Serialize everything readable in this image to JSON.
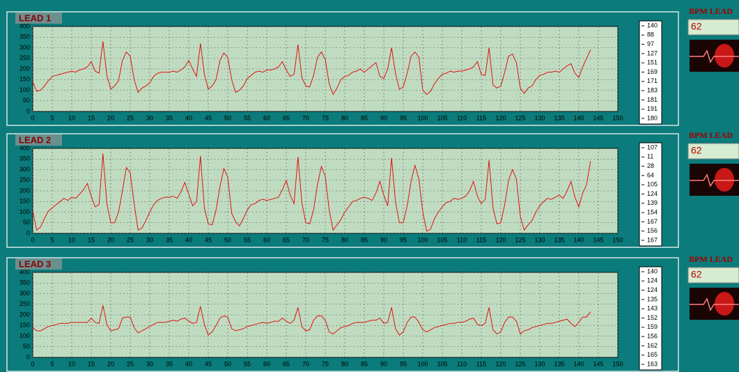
{
  "chart_data": [
    {
      "type": "line",
      "title": "LEAD 1",
      "color": "#e01010",
      "grid": true,
      "x": [
        0,
        1,
        2,
        3,
        4,
        5,
        6,
        7,
        8,
        9,
        10,
        11,
        12,
        13,
        14,
        15,
        16,
        17,
        18,
        19,
        20,
        21,
        22,
        23,
        24,
        25,
        26,
        27,
        28,
        29,
        30,
        31,
        32,
        33,
        34,
        35,
        36,
        37,
        38,
        39,
        40,
        41,
        42,
        43,
        44,
        45,
        46,
        47,
        48,
        49,
        50,
        51,
        52,
        53,
        54,
        55,
        56,
        57,
        58,
        59,
        60,
        61,
        62,
        63,
        64,
        65,
        66,
        67,
        68,
        69,
        70,
        71,
        72,
        73,
        74,
        75,
        76,
        77,
        78,
        79,
        80,
        81,
        82,
        83,
        84,
        85,
        86,
        87,
        88,
        89,
        90,
        91,
        92,
        93,
        94,
        95,
        96,
        97,
        98,
        99,
        100,
        101,
        102,
        103,
        104,
        105,
        106,
        107,
        108,
        109,
        110,
        111,
        112,
        113,
        114,
        115,
        116,
        117,
        118,
        119,
        120,
        121,
        122,
        123,
        124,
        125,
        126,
        127,
        128,
        129,
        130,
        131,
        132,
        133,
        134,
        135,
        136,
        137,
        138,
        139,
        140,
        141,
        142,
        143
      ],
      "values": [
        140,
        95,
        100,
        120,
        145,
        165,
        170,
        175,
        180,
        185,
        190,
        185,
        195,
        200,
        210,
        235,
        190,
        180,
        330,
        170,
        105,
        120,
        145,
        240,
        280,
        260,
        150,
        90,
        110,
        120,
        135,
        165,
        180,
        185,
        185,
        185,
        190,
        185,
        195,
        210,
        240,
        200,
        165,
        320,
        175,
        105,
        120,
        150,
        240,
        275,
        255,
        150,
        90,
        100,
        120,
        155,
        170,
        185,
        190,
        185,
        195,
        195,
        200,
        210,
        235,
        195,
        165,
        175,
        315,
        160,
        120,
        115,
        170,
        255,
        280,
        245,
        130,
        80,
        110,
        150,
        165,
        170,
        185,
        190,
        200,
        185,
        200,
        215,
        230,
        165,
        155,
        200,
        300,
        180,
        105,
        115,
        180,
        260,
        280,
        255,
        100,
        80,
        95,
        130,
        155,
        175,
        180,
        190,
        185,
        190,
        190,
        195,
        200,
        210,
        235,
        175,
        170,
        300,
        125,
        110,
        120,
        185,
        260,
        270,
        230,
        110,
        85,
        110,
        120,
        150,
        170,
        175,
        185,
        185,
        190,
        185,
        200,
        215,
        225,
        180,
        160,
        210,
        250,
        290
      ],
      "xlim": [
        0,
        150
      ],
      "xticks": [
        0,
        5,
        10,
        15,
        20,
        25,
        30,
        35,
        40,
        45,
        50,
        55,
        60,
        65,
        70,
        75,
        80,
        85,
        90,
        95,
        100,
        105,
        110,
        115,
        120,
        125,
        130,
        135,
        140,
        145,
        150
      ],
      "ylim": [
        0,
        400
      ],
      "yticks": [
        0,
        50,
        100,
        150,
        200,
        250,
        300,
        350,
        400
      ],
      "side_values": [
        140,
        88,
        97,
        127,
        151,
        169,
        171,
        183,
        181,
        191,
        180
      ]
    },
    {
      "type": "line",
      "title": "LEAD 2",
      "color": "#e01010",
      "grid": true,
      "x": [
        0,
        1,
        2,
        3,
        4,
        5,
        6,
        7,
        8,
        9,
        10,
        11,
        12,
        13,
        14,
        15,
        16,
        17,
        18,
        19,
        20,
        21,
        22,
        23,
        24,
        25,
        26,
        27,
        28,
        29,
        30,
        31,
        32,
        33,
        34,
        35,
        36,
        37,
        38,
        39,
        40,
        41,
        42,
        43,
        44,
        45,
        46,
        47,
        48,
        49,
        50,
        51,
        52,
        53,
        54,
        55,
        56,
        57,
        58,
        59,
        60,
        61,
        62,
        63,
        64,
        65,
        66,
        67,
        68,
        69,
        70,
        71,
        72,
        73,
        74,
        75,
        76,
        77,
        78,
        79,
        80,
        81,
        82,
        83,
        84,
        85,
        86,
        87,
        88,
        89,
        90,
        91,
        92,
        93,
        94,
        95,
        96,
        97,
        98,
        99,
        100,
        101,
        102,
        103,
        104,
        105,
        106,
        107,
        108,
        109,
        110,
        111,
        112,
        113,
        114,
        115,
        116,
        117,
        118,
        119,
        120,
        121,
        122,
        123,
        124,
        125,
        126,
        127,
        128,
        129,
        130,
        131,
        132,
        133,
        134,
        135,
        136,
        137,
        138,
        139,
        140,
        141,
        142,
        143
      ],
      "values": [
        105,
        15,
        30,
        70,
        105,
        120,
        135,
        150,
        165,
        155,
        170,
        165,
        185,
        205,
        235,
        175,
        125,
        135,
        375,
        140,
        50,
        50,
        100,
        200,
        310,
        285,
        140,
        15,
        25,
        60,
        100,
        135,
        155,
        165,
        170,
        170,
        175,
        165,
        195,
        240,
        185,
        130,
        150,
        365,
        120,
        45,
        40,
        110,
        220,
        305,
        265,
        95,
        55,
        35,
        70,
        110,
        135,
        140,
        155,
        160,
        155,
        160,
        165,
        170,
        205,
        250,
        180,
        140,
        360,
        145,
        50,
        45,
        110,
        230,
        315,
        270,
        110,
        15,
        40,
        65,
        100,
        125,
        150,
        155,
        165,
        170,
        165,
        155,
        190,
        245,
        180,
        130,
        355,
        150,
        50,
        50,
        130,
        245,
        320,
        255,
        100,
        10,
        20,
        70,
        100,
        125,
        145,
        150,
        165,
        160,
        165,
        175,
        200,
        245,
        175,
        140,
        160,
        345,
        120,
        45,
        50,
        135,
        250,
        300,
        255,
        80,
        15,
        40,
        60,
        100,
        130,
        150,
        165,
        160,
        170,
        180,
        165,
        200,
        245,
        170,
        125,
        190,
        230,
        340
      ],
      "xlim": [
        0,
        150
      ],
      "xticks": [
        0,
        5,
        10,
        15,
        20,
        25,
        30,
        35,
        40,
        45,
        50,
        55,
        60,
        65,
        70,
        75,
        80,
        85,
        90,
        95,
        100,
        105,
        110,
        115,
        120,
        125,
        130,
        135,
        140,
        145,
        150
      ],
      "ylim": [
        0,
        400
      ],
      "yticks": [
        0,
        50,
        100,
        150,
        200,
        250,
        300,
        350,
        400
      ],
      "side_values": [
        107,
        11,
        28,
        64,
        105,
        124,
        139,
        154,
        167,
        156,
        167
      ]
    },
    {
      "type": "line",
      "title": "LEAD 3",
      "color": "#e01010",
      "grid": true,
      "x": [
        0,
        1,
        2,
        3,
        4,
        5,
        6,
        7,
        8,
        9,
        10,
        11,
        12,
        13,
        14,
        15,
        16,
        17,
        18,
        19,
        20,
        21,
        22,
        23,
        24,
        25,
        26,
        27,
        28,
        29,
        30,
        31,
        32,
        33,
        34,
        35,
        36,
        37,
        38,
        39,
        40,
        41,
        42,
        43,
        44,
        45,
        46,
        47,
        48,
        49,
        50,
        51,
        52,
        53,
        54,
        55,
        56,
        57,
        58,
        59,
        60,
        61,
        62,
        63,
        64,
        65,
        66,
        67,
        68,
        69,
        70,
        71,
        72,
        73,
        74,
        75,
        76,
        77,
        78,
        79,
        80,
        81,
        82,
        83,
        84,
        85,
        86,
        87,
        88,
        89,
        90,
        91,
        92,
        93,
        94,
        95,
        96,
        97,
        98,
        99,
        100,
        101,
        102,
        103,
        104,
        105,
        106,
        107,
        108,
        109,
        110,
        111,
        112,
        113,
        114,
        115,
        116,
        117,
        118,
        119,
        120,
        121,
        122,
        123,
        124,
        125,
        126,
        127,
        128,
        129,
        130,
        131,
        132,
        133,
        134,
        135,
        136,
        137,
        138,
        139,
        140,
        141,
        142,
        143
      ],
      "values": [
        140,
        125,
        125,
        135,
        145,
        150,
        155,
        160,
        160,
        160,
        165,
        165,
        165,
        165,
        165,
        185,
        165,
        160,
        245,
        155,
        125,
        130,
        135,
        185,
        190,
        190,
        140,
        115,
        125,
        135,
        145,
        155,
        165,
        165,
        165,
        170,
        175,
        170,
        180,
        185,
        170,
        160,
        165,
        240,
        155,
        105,
        120,
        150,
        185,
        195,
        190,
        135,
        125,
        130,
        135,
        145,
        150,
        155,
        160,
        165,
        160,
        165,
        170,
        170,
        185,
        170,
        160,
        175,
        235,
        145,
        125,
        130,
        175,
        195,
        195,
        175,
        120,
        110,
        125,
        140,
        145,
        150,
        160,
        165,
        165,
        165,
        170,
        175,
        175,
        185,
        160,
        165,
        235,
        135,
        105,
        120,
        165,
        190,
        190,
        165,
        130,
        120,
        130,
        140,
        145,
        150,
        155,
        160,
        160,
        165,
        165,
        170,
        180,
        185,
        155,
        150,
        160,
        235,
        130,
        110,
        120,
        165,
        190,
        190,
        170,
        110,
        125,
        130,
        140,
        145,
        150,
        155,
        160,
        160,
        165,
        170,
        175,
        180,
        160,
        145,
        165,
        190,
        190,
        215
      ],
      "xlim": [
        0,
        150
      ],
      "xticks": [
        0,
        5,
        10,
        15,
        20,
        25,
        30,
        35,
        40,
        45,
        50,
        55,
        60,
        65,
        70,
        75,
        80,
        85,
        90,
        95,
        100,
        105,
        110,
        115,
        120,
        125,
        130,
        135,
        140,
        145,
        150
      ],
      "ylim": [
        0,
        400
      ],
      "yticks": [
        0,
        50,
        100,
        150,
        200,
        250,
        300,
        350,
        400
      ],
      "side_values": [
        140,
        124,
        124,
        135,
        143,
        152,
        159,
        156,
        162,
        165,
        163
      ]
    }
  ],
  "side_panels": [
    {
      "label": "BPM LEAD",
      "bpm": 62
    },
    {
      "label": "BPM LEAD",
      "bpm": 62
    },
    {
      "label": "BPM LEAD",
      "bpm": 62
    }
  ]
}
